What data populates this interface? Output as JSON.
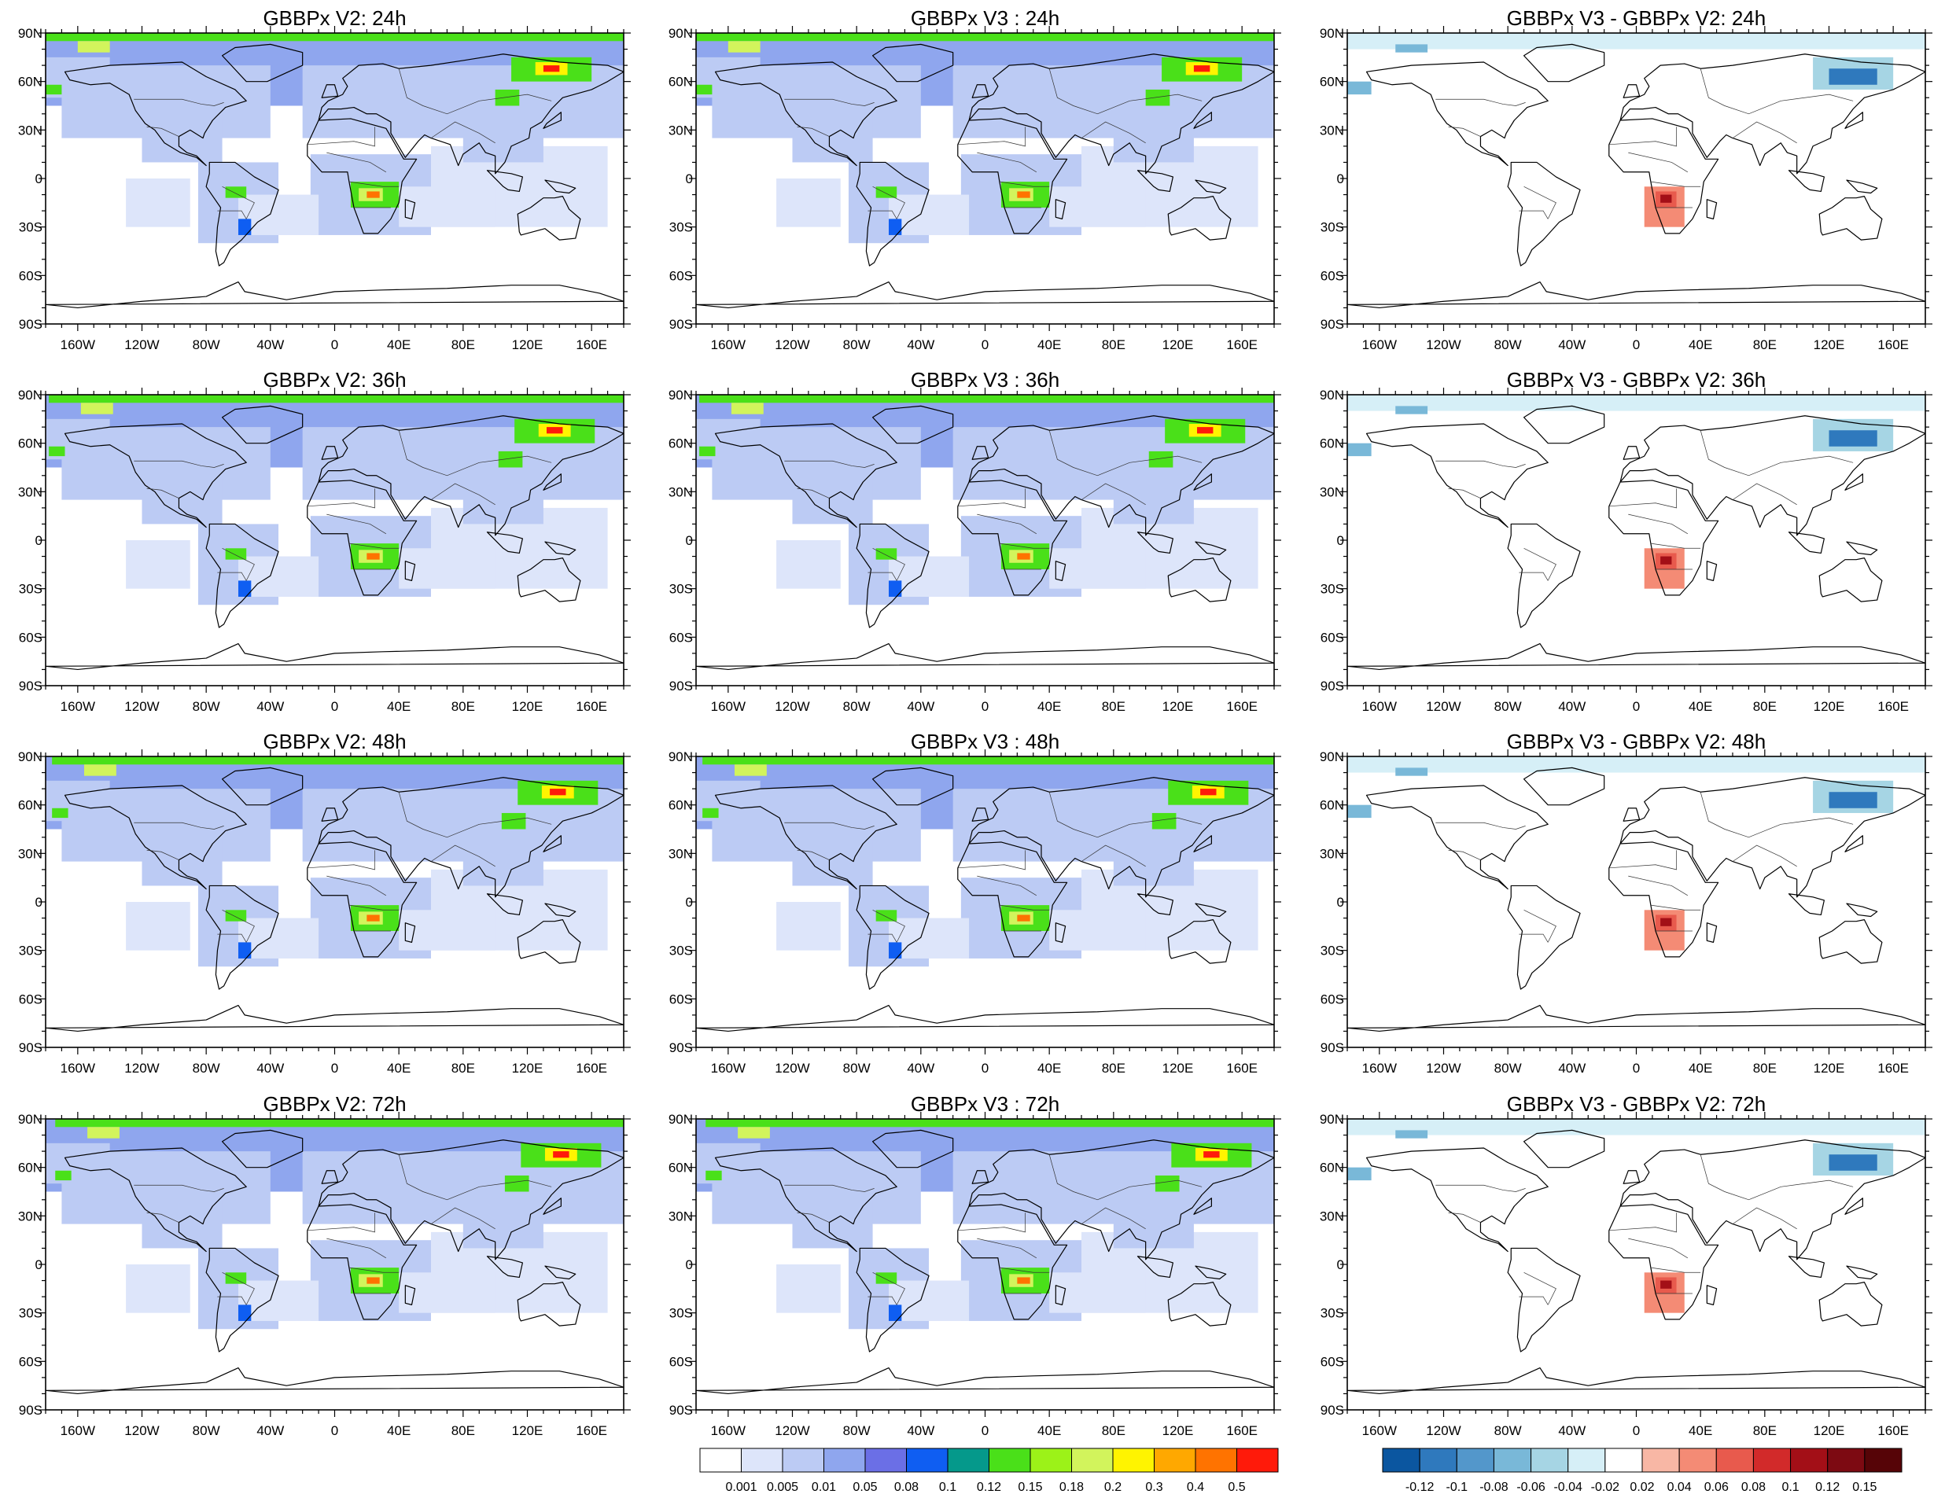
{
  "chart_data": {
    "type": "heatmap",
    "layout": {
      "rows": 4,
      "columns": 3
    },
    "lon_ticks": [
      "160W",
      "120W",
      "80W",
      "40W",
      "0",
      "40E",
      "80E",
      "120E",
      "160E"
    ],
    "lon_tick_values": [
      -160,
      -120,
      -80,
      -40,
      0,
      40,
      80,
      120,
      160
    ],
    "lat_ticks": [
      "90N",
      "60N",
      "30N",
      "0",
      "30S",
      "60S",
      "90S"
    ],
    "lat_tick_values": [
      90,
      60,
      30,
      0,
      -30,
      -60,
      -90
    ],
    "xlim": [
      -180,
      180
    ],
    "ylim": [
      -90,
      90
    ],
    "panels": [
      {
        "title": "GBBPx V2: 24h",
        "field": "abs",
        "hour": 24
      },
      {
        "title": "GBBPx V3 : 24h",
        "field": "abs",
        "hour": 24
      },
      {
        "title": "GBBPx V3 - GBBPx V2: 24h",
        "field": "diff",
        "hour": 24
      },
      {
        "title": "GBBPx V2: 36h",
        "field": "abs",
        "hour": 36
      },
      {
        "title": "GBBPx V3 : 36h",
        "field": "abs",
        "hour": 36
      },
      {
        "title": "GBBPx V3 - GBBPx V2: 36h",
        "field": "diff",
        "hour": 36
      },
      {
        "title": "GBBPx V2: 48h",
        "field": "abs",
        "hour": 48
      },
      {
        "title": "GBBPx V3 : 48h",
        "field": "abs",
        "hour": 48
      },
      {
        "title": "GBBPx V3 - GBBPx V2: 48h",
        "field": "diff",
        "hour": 48
      },
      {
        "title": "GBBPx V2: 72h",
        "field": "abs",
        "hour": 72
      },
      {
        "title": "GBBPx V3 : 72h",
        "field": "abs",
        "hour": 72
      },
      {
        "title": "GBBPx V3 - GBBPx V2: 72h",
        "field": "diff",
        "hour": 72
      }
    ],
    "colorbar_abs": {
      "levels": [
        "0.001",
        "0.005",
        "0.01",
        "0.05",
        "0.08",
        "0.1",
        "0.12",
        "0.15",
        "0.18",
        "0.2",
        "0.3",
        "0.4",
        "0.5"
      ],
      "colors": [
        "#ffffff",
        "#dde5fa",
        "#bccbf4",
        "#8fa6ee",
        "#6b6fe6",
        "#0f5ef2",
        "#05998b",
        "#4ae019",
        "#9cf218",
        "#d2f45c",
        "#fff400",
        "#ffa800",
        "#ff7300",
        "#ff1a0a"
      ]
    },
    "colorbar_diff": {
      "levels": [
        "-0.12",
        "-0.1",
        "-0.08",
        "-0.06",
        "-0.04",
        "-0.02",
        "0.02",
        "0.04",
        "0.06",
        "0.08",
        "0.1",
        "0.12",
        "0.15"
      ],
      "colors": [
        "#0b56a0",
        "#2f79bd",
        "#5397cb",
        "#79b8d8",
        "#a6d5e4",
        "#d6eff7",
        "#ffffff",
        "#f8b7a5",
        "#f48b75",
        "#e85a4d",
        "#d22a2a",
        "#a30f17",
        "#7d0a12",
        "#560407"
      ]
    },
    "features": {
      "abs": {
        "base": [
          {
            "lon": [
              -180,
              180
            ],
            "lat": [
              45,
              90
            ],
            "level": 3
          },
          {
            "lon": [
              -170,
              -40
            ],
            "lat": [
              25,
              70
            ],
            "level": 2
          },
          {
            "lon": [
              -20,
              180
            ],
            "lat": [
              25,
              70
            ],
            "level": 2
          },
          {
            "lon": [
              -120,
              -70
            ],
            "lat": [
              10,
              45
            ],
            "level": 2
          },
          {
            "lon": [
              -85,
              -35
            ],
            "lat": [
              -40,
              10
            ],
            "level": 2
          },
          {
            "lon": [
              -15,
              60
            ],
            "lat": [
              -35,
              15
            ],
            "level": 2
          },
          {
            "lon": [
              -60,
              -10
            ],
            "lat": [
              -35,
              -10
            ],
            "level": 1
          },
          {
            "lon": [
              60,
              170
            ],
            "lat": [
              -30,
              20
            ],
            "level": 1
          },
          {
            "lon": [
              40,
              100
            ],
            "lat": [
              -30,
              -5
            ],
            "level": 1
          },
          {
            "lon": [
              -130,
              -90
            ],
            "lat": [
              -30,
              0
            ],
            "level": 1
          },
          {
            "lon": [
              80,
              130
            ],
            "lat": [
              10,
              40
            ],
            "level": 2
          },
          {
            "lon": [
              -180,
              -140
            ],
            "lat": [
              50,
              75
            ],
            "level": 2
          }
        ],
        "hotspots": [
          {
            "lon": [
              -180,
              180
            ],
            "lat": [
              85,
              90
            ],
            "level": 7
          },
          {
            "lon": [
              -160,
              -140
            ],
            "lat": [
              78,
              85
            ],
            "level": 9
          },
          {
            "lon": [
              10,
              40
            ],
            "lat": [
              -18,
              -2
            ],
            "level": 7
          },
          {
            "lon": [
              15,
              30
            ],
            "lat": [
              -14,
              -6
            ],
            "level": 9
          },
          {
            "lon": [
              20,
              28
            ],
            "lat": [
              -12,
              -8
            ],
            "level": 12
          },
          {
            "lon": [
              -68,
              -55
            ],
            "lat": [
              -12,
              -5
            ],
            "level": 7
          },
          {
            "lon": [
              110,
              160
            ],
            "lat": [
              60,
              75
            ],
            "level": 7
          },
          {
            "lon": [
              125,
              145
            ],
            "lat": [
              64,
              72
            ],
            "level": 10
          },
          {
            "lon": [
              130,
              140
            ],
            "lat": [
              66,
              70
            ],
            "level": 13
          },
          {
            "lon": [
              100,
              115
            ],
            "lat": [
              45,
              55
            ],
            "level": 7
          },
          {
            "lon": [
              -180,
              -170
            ],
            "lat": [
              52,
              58
            ],
            "level": 7
          },
          {
            "lon": [
              -60,
              -52
            ],
            "lat": [
              -35,
              -25
            ],
            "level": 5
          }
        ]
      },
      "diff": [
        {
          "lon": [
            -180,
            180
          ],
          "lat": [
            80,
            90
          ],
          "level": 5
        },
        {
          "lon": [
            -150,
            -130
          ],
          "lat": [
            78,
            83
          ],
          "level": 3
        },
        {
          "lon": [
            110,
            160
          ],
          "lat": [
            55,
            75
          ],
          "level": 4
        },
        {
          "lon": [
            120,
            150
          ],
          "lat": [
            58,
            68
          ],
          "level": 1
        },
        {
          "lon": [
            -180,
            -165
          ],
          "lat": [
            52,
            60
          ],
          "level": 3
        },
        {
          "lon": [
            5,
            30
          ],
          "lat": [
            -30,
            -5
          ],
          "level": 8
        },
        {
          "lon": [
            12,
            25
          ],
          "lat": [
            -18,
            -8
          ],
          "level": 9
        },
        {
          "lon": [
            15,
            22
          ],
          "lat": [
            -15,
            -10
          ],
          "level": 11
        }
      ]
    }
  }
}
